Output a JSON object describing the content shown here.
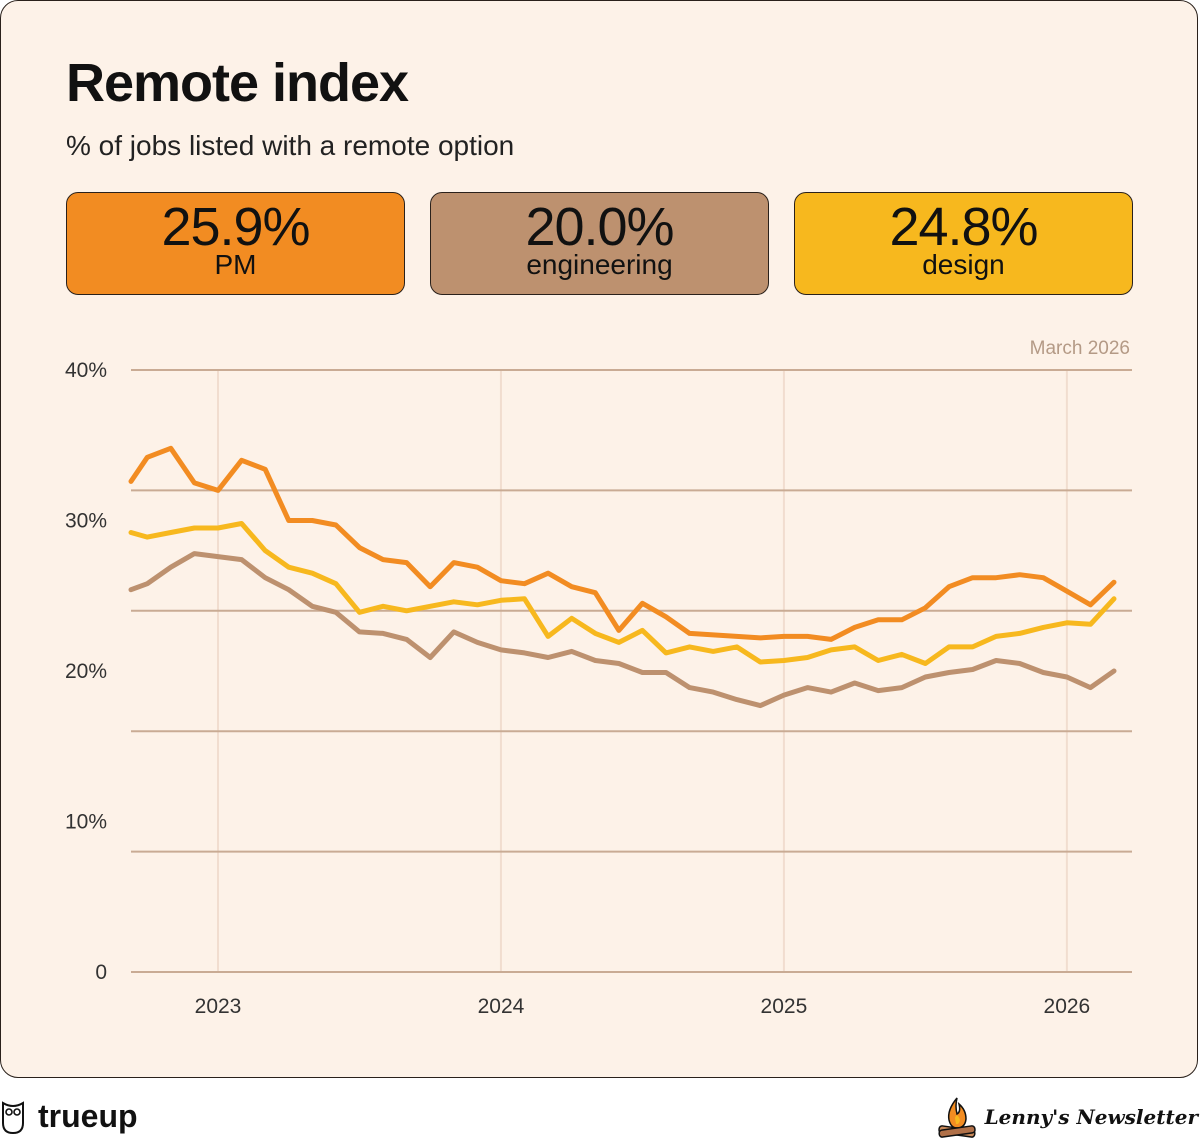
{
  "header": {
    "title": "Remote index",
    "subtitle": "% of jobs listed with a remote option"
  },
  "stats": [
    {
      "value": "25.9%",
      "label": "PM",
      "color": "#f28c22"
    },
    {
      "value": "20.0%",
      "label": "engineering",
      "color": "#bd916f"
    },
    {
      "value": "24.8%",
      "label": "design",
      "color": "#f7b81e"
    }
  ],
  "chart_data": {
    "type": "line",
    "title": "Remote index",
    "subtitle": "% of jobs listed with a remote option",
    "annotation": "March 2026",
    "ylim": [
      0,
      40
    ],
    "yticks": [
      "0",
      "10%",
      "20%",
      "30%",
      "40%"
    ],
    "ytick_values": [
      0,
      10,
      20,
      30,
      40
    ],
    "xticks": [
      "2023",
      "2024",
      "2025",
      "2026"
    ],
    "x_start": "2022-09",
    "x_end": "2026-03",
    "x_step": "month",
    "series": [
      {
        "name": "PM",
        "color": "#f28c22",
        "values": [
          32.6,
          34.2,
          34.8,
          32.5,
          32.0,
          34.0,
          33.4,
          30.0,
          30.0,
          29.7,
          28.2,
          27.4,
          27.2,
          25.6,
          27.2,
          26.9,
          26.0,
          25.8,
          26.5,
          25.6,
          25.2,
          22.7,
          24.5,
          23.6,
          22.5,
          22.4,
          22.3,
          22.2,
          22.3,
          22.3,
          22.1,
          22.9,
          23.4,
          23.4,
          24.2,
          25.6,
          26.2,
          26.2,
          26.4,
          26.2,
          25.3,
          24.4,
          25.9
        ]
      },
      {
        "name": "engineering",
        "color": "#bd916f",
        "values": [
          25.4,
          25.8,
          26.9,
          27.8,
          27.6,
          27.4,
          26.2,
          25.4,
          24.3,
          23.9,
          22.6,
          22.5,
          22.1,
          20.9,
          22.6,
          21.9,
          21.4,
          21.2,
          20.9,
          21.3,
          20.7,
          20.5,
          19.9,
          19.9,
          18.9,
          18.6,
          18.1,
          17.7,
          18.4,
          18.9,
          18.6,
          19.2,
          18.7,
          18.9,
          19.6,
          19.9,
          20.1,
          20.7,
          20.5,
          19.9,
          19.6,
          18.9,
          20.0
        ]
      },
      {
        "name": "design",
        "color": "#f7b81e",
        "values": [
          29.2,
          28.9,
          29.2,
          29.5,
          29.5,
          29.8,
          28.0,
          26.9,
          26.5,
          25.8,
          23.9,
          24.3,
          24.0,
          24.3,
          24.6,
          24.4,
          24.7,
          24.8,
          22.3,
          23.5,
          22.5,
          21.9,
          22.7,
          21.2,
          21.6,
          21.3,
          21.6,
          20.6,
          20.7,
          20.9,
          21.4,
          21.6,
          20.7,
          21.1,
          20.5,
          21.6,
          21.6,
          22.3,
          22.5,
          22.9,
          23.2,
          23.1,
          24.8
        ]
      }
    ]
  },
  "footer": {
    "left_brand": "trueup",
    "right_brand": "Lenny's Newsletter"
  }
}
